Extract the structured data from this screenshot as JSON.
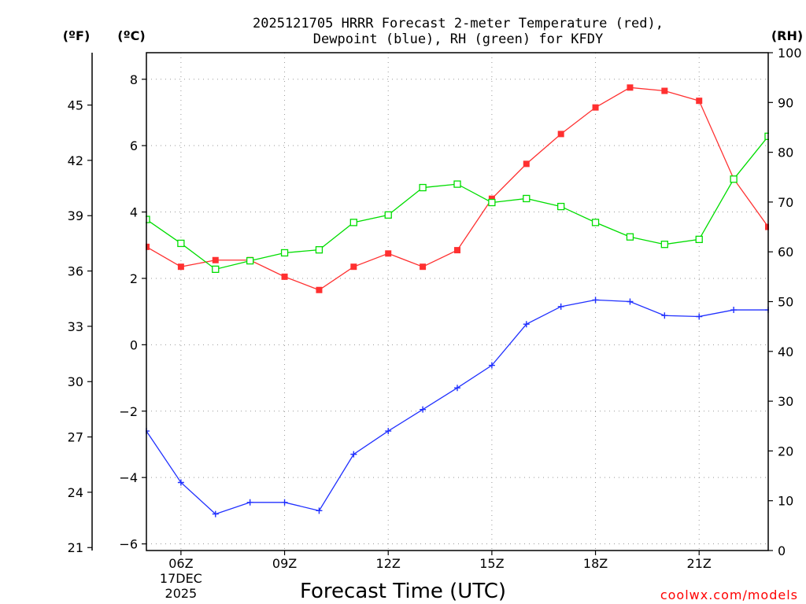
{
  "chart_data": {
    "type": "line",
    "title": [
      "2025121705 HRRR Forecast 2-meter Temperature (red),",
      "Dewpoint (blue), RH (green) for KFDY"
    ],
    "xlabel": "Forecast Time (UTC)",
    "credit": "coolwx.com/models",
    "unit_labels": {
      "fahrenheit": "(ºF)",
      "celsius": "(ºC)",
      "rh": "(RH)"
    },
    "x": [
      5,
      6,
      7,
      8,
      9,
      10,
      11,
      12,
      13,
      14,
      15,
      16,
      17,
      18,
      19,
      20,
      21,
      22,
      23
    ],
    "xlim": [
      5,
      23
    ],
    "x_ticks": [
      {
        "x": 6,
        "lines": [
          "06Z",
          "17DEC",
          "2025"
        ]
      },
      {
        "x": 9,
        "lines": [
          "09Z"
        ]
      },
      {
        "x": 12,
        "lines": [
          "12Z"
        ]
      },
      {
        "x": 15,
        "lines": [
          "15Z"
        ]
      },
      {
        "x": 18,
        "lines": [
          "18Z"
        ]
      },
      {
        "x": 21,
        "lines": [
          "21Z"
        ]
      }
    ],
    "celsius_axis": {
      "ylim": [
        -6.2,
        8.8
      ],
      "ticks": [
        8,
        6,
        4,
        2,
        0,
        -2,
        -4,
        -6
      ],
      "tick_labels": [
        "8",
        "6",
        "4",
        "2",
        "0",
        "−2",
        "−4",
        "−6"
      ]
    },
    "fahrenheit_axis": {
      "ticks": [
        45,
        42,
        39,
        36,
        33,
        30,
        27,
        24,
        21
      ],
      "tick_labels": [
        "45",
        "42",
        "39",
        "36",
        "33",
        "30",
        "27",
        "24",
        "21"
      ]
    },
    "rh_axis": {
      "ylim": [
        0,
        100
      ],
      "ticks": [
        100,
        90,
        80,
        70,
        60,
        50,
        40,
        30,
        20,
        10,
        0
      ],
      "tick_labels": [
        "100",
        "90",
        "80",
        "70",
        "60",
        "50",
        "40",
        "30",
        "20",
        "10",
        "0"
      ]
    },
    "series": [
      {
        "name": "2-meter Temperature",
        "axis": "celsius",
        "color": "#ff3030",
        "marker": "filled-square",
        "values": [
          2.95,
          2.35,
          2.55,
          2.55,
          2.05,
          1.65,
          2.35,
          2.75,
          2.35,
          2.85,
          4.4,
          5.45,
          6.35,
          7.15,
          7.75,
          7.65,
          7.35,
          5.0,
          3.55
        ]
      },
      {
        "name": "Dewpoint",
        "axis": "celsius",
        "color": "#2030ff",
        "marker": "plus",
        "values": [
          -2.6,
          -4.15,
          -5.1,
          -4.75,
          -4.75,
          -5.0,
          -3.3,
          -2.6,
          -1.95,
          -1.3,
          -0.62,
          0.62,
          1.15,
          1.35,
          1.3,
          0.88,
          0.85,
          1.05,
          1.05
        ]
      },
      {
        "name": "RH",
        "axis": "rh",
        "color": "#00dd00",
        "marker": "open-square",
        "values": [
          66.5,
          61.7,
          56.5,
          58.2,
          59.8,
          60.4,
          65.9,
          67.4,
          72.9,
          73.6,
          69.9,
          70.7,
          69.1,
          65.9,
          63.0,
          61.5,
          62.5,
          74.6,
          83.2
        ]
      }
    ]
  }
}
